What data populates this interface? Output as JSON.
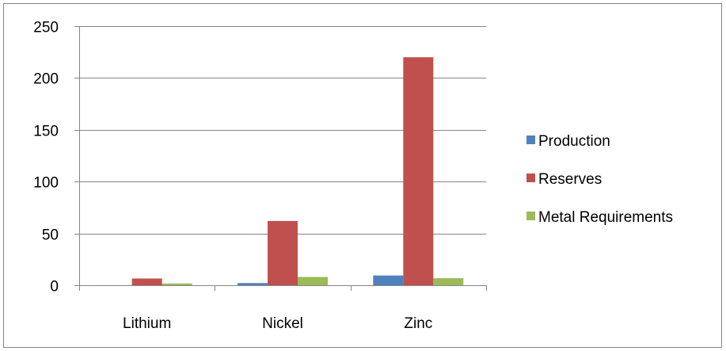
{
  "chart_data": {
    "type": "bar",
    "title": "",
    "xlabel": "",
    "ylabel": "",
    "categories": [
      "Lithium",
      "Nickel",
      "Zinc"
    ],
    "series": [
      {
        "name": "Production",
        "color": "#4F81BD",
        "values": [
          0.03,
          2.1,
          9.4
        ]
      },
      {
        "name": "Reserves",
        "color": "#C0504D",
        "values": [
          6.5,
          62,
          220
        ]
      },
      {
        "name": "Metal Requirements",
        "color": "#9BBB59",
        "values": [
          1.7,
          8.0,
          6.8
        ]
      }
    ],
    "ylim": [
      0,
      250
    ],
    "yticks": [
      0,
      50,
      100,
      150,
      200,
      250
    ],
    "grid": true,
    "legend_position": "right"
  }
}
